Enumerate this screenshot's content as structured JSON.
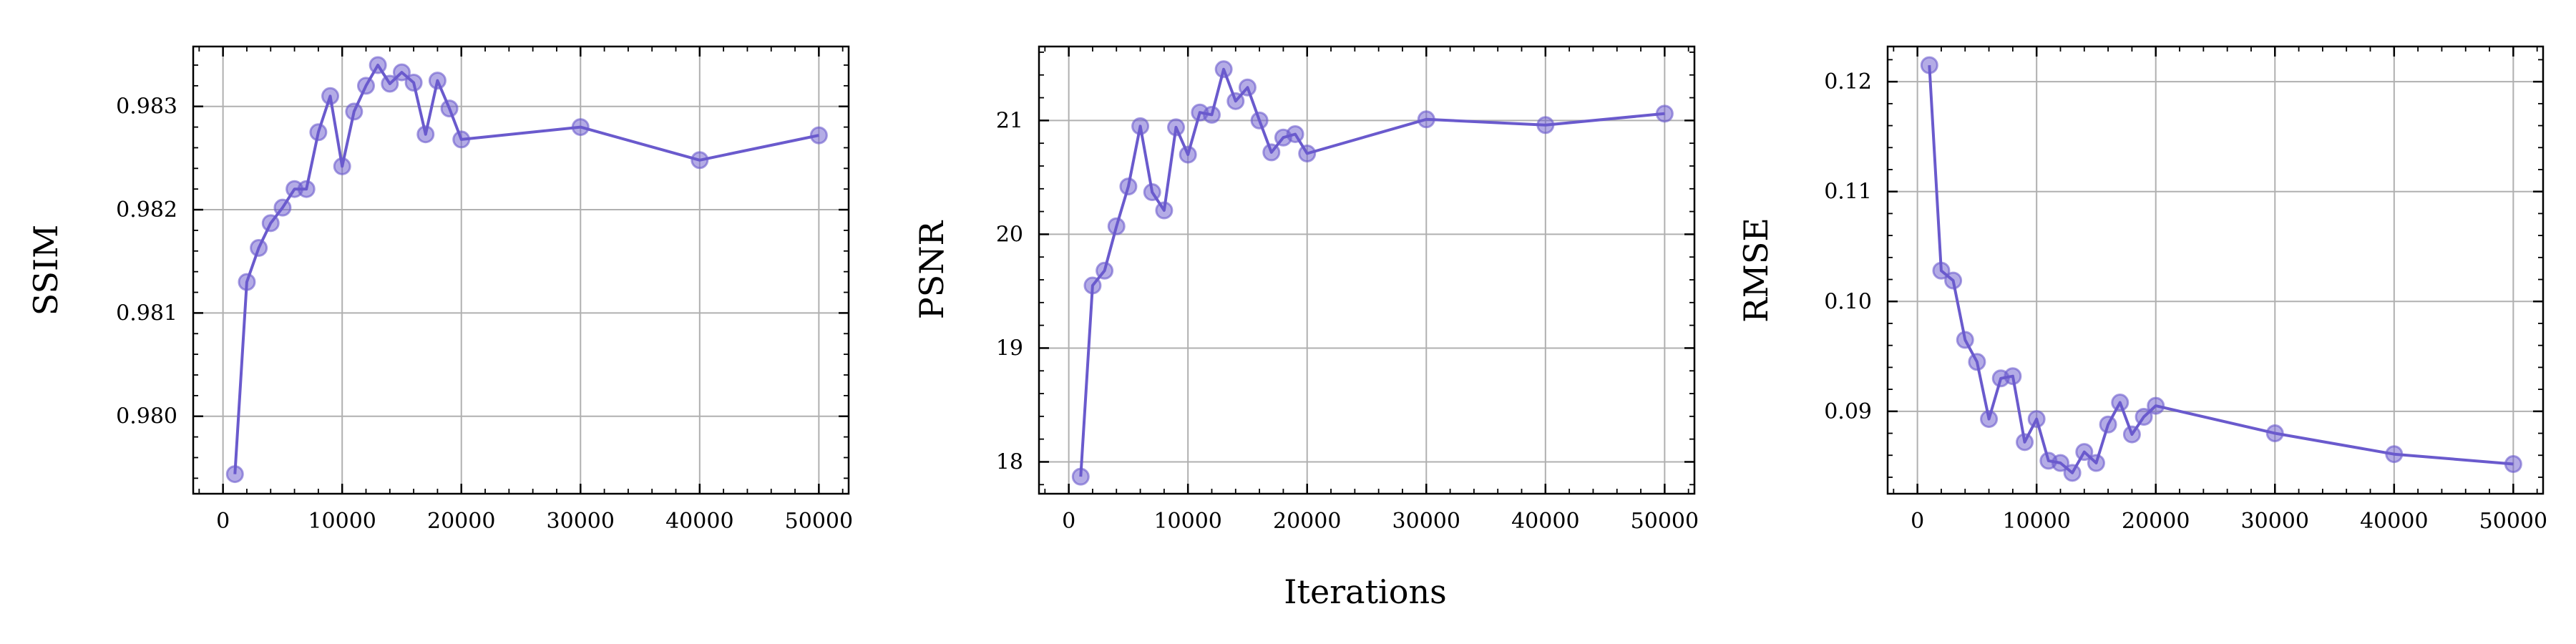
{
  "figure": {
    "xlabel": "Iterations",
    "color": "#6a5acd"
  },
  "chart_data": [
    {
      "type": "line",
      "ylabel": "SSIM",
      "xlim": [
        -2500,
        52500
      ],
      "ylim": [
        0.97925,
        0.98358
      ],
      "xticks": [
        0,
        10000,
        20000,
        30000,
        40000,
        50000
      ],
      "yticks": [
        0.98,
        0.981,
        0.982,
        0.983
      ],
      "ytick_labels": [
        "0.980",
        "0.981",
        "0.982",
        "0.983"
      ],
      "grid": true,
      "x": [
        1000,
        2000,
        3000,
        4000,
        5000,
        6000,
        7000,
        8000,
        9000,
        10000,
        11000,
        12000,
        13000,
        14000,
        15000,
        16000,
        17000,
        18000,
        19000,
        20000,
        30000,
        40000,
        50000
      ],
      "y": [
        0.97944,
        0.9813,
        0.98163,
        0.98187,
        0.98202,
        0.9822,
        0.9822,
        0.98275,
        0.9831,
        0.98242,
        0.98295,
        0.9832,
        0.9834,
        0.98322,
        0.98333,
        0.98323,
        0.98273,
        0.98325,
        0.98298,
        0.98268,
        0.9828,
        0.98248,
        0.98272
      ]
    },
    {
      "type": "line",
      "ylabel": "PSNR",
      "xlim": [
        -2500,
        52500
      ],
      "ylim": [
        17.72,
        21.65
      ],
      "xticks": [
        0,
        10000,
        20000,
        30000,
        40000,
        50000
      ],
      "yticks": [
        18,
        19,
        20,
        21
      ],
      "ytick_labels": [
        "18",
        "19",
        "20",
        "21"
      ],
      "grid": true,
      "x": [
        1000,
        2000,
        3000,
        4000,
        5000,
        6000,
        7000,
        8000,
        9000,
        10000,
        11000,
        12000,
        13000,
        14000,
        15000,
        16000,
        17000,
        18000,
        19000,
        20000,
        30000,
        40000,
        50000
      ],
      "y": [
        17.87,
        19.55,
        19.68,
        20.07,
        20.42,
        20.95,
        20.37,
        20.21,
        20.94,
        20.7,
        21.07,
        21.05,
        21.45,
        21.17,
        21.29,
        21.0,
        20.72,
        20.85,
        20.88,
        20.71,
        21.01,
        20.96,
        21.06
      ]
    },
    {
      "type": "line",
      "ylabel": "RMSE",
      "xlim": [
        -2500,
        52500
      ],
      "ylim": [
        0.0825,
        0.1232
      ],
      "xticks": [
        0,
        10000,
        20000,
        30000,
        40000,
        50000
      ],
      "yticks": [
        0.09,
        0.1,
        0.11,
        0.12
      ],
      "ytick_labels": [
        "0.09",
        "0.10",
        "0.11",
        "0.12"
      ],
      "grid": true,
      "x": [
        1000,
        2000,
        3000,
        4000,
        5000,
        6000,
        7000,
        8000,
        9000,
        10000,
        11000,
        12000,
        13000,
        14000,
        15000,
        16000,
        17000,
        18000,
        19000,
        20000,
        30000,
        40000,
        50000
      ],
      "y": [
        0.1215,
        0.1028,
        0.1019,
        0.0965,
        0.0945,
        0.0893,
        0.093,
        0.0932,
        0.0872,
        0.0893,
        0.0855,
        0.0853,
        0.0844,
        0.0863,
        0.0853,
        0.0888,
        0.0908,
        0.0879,
        0.0895,
        0.0905,
        0.088,
        0.0861,
        0.0852
      ]
    }
  ]
}
